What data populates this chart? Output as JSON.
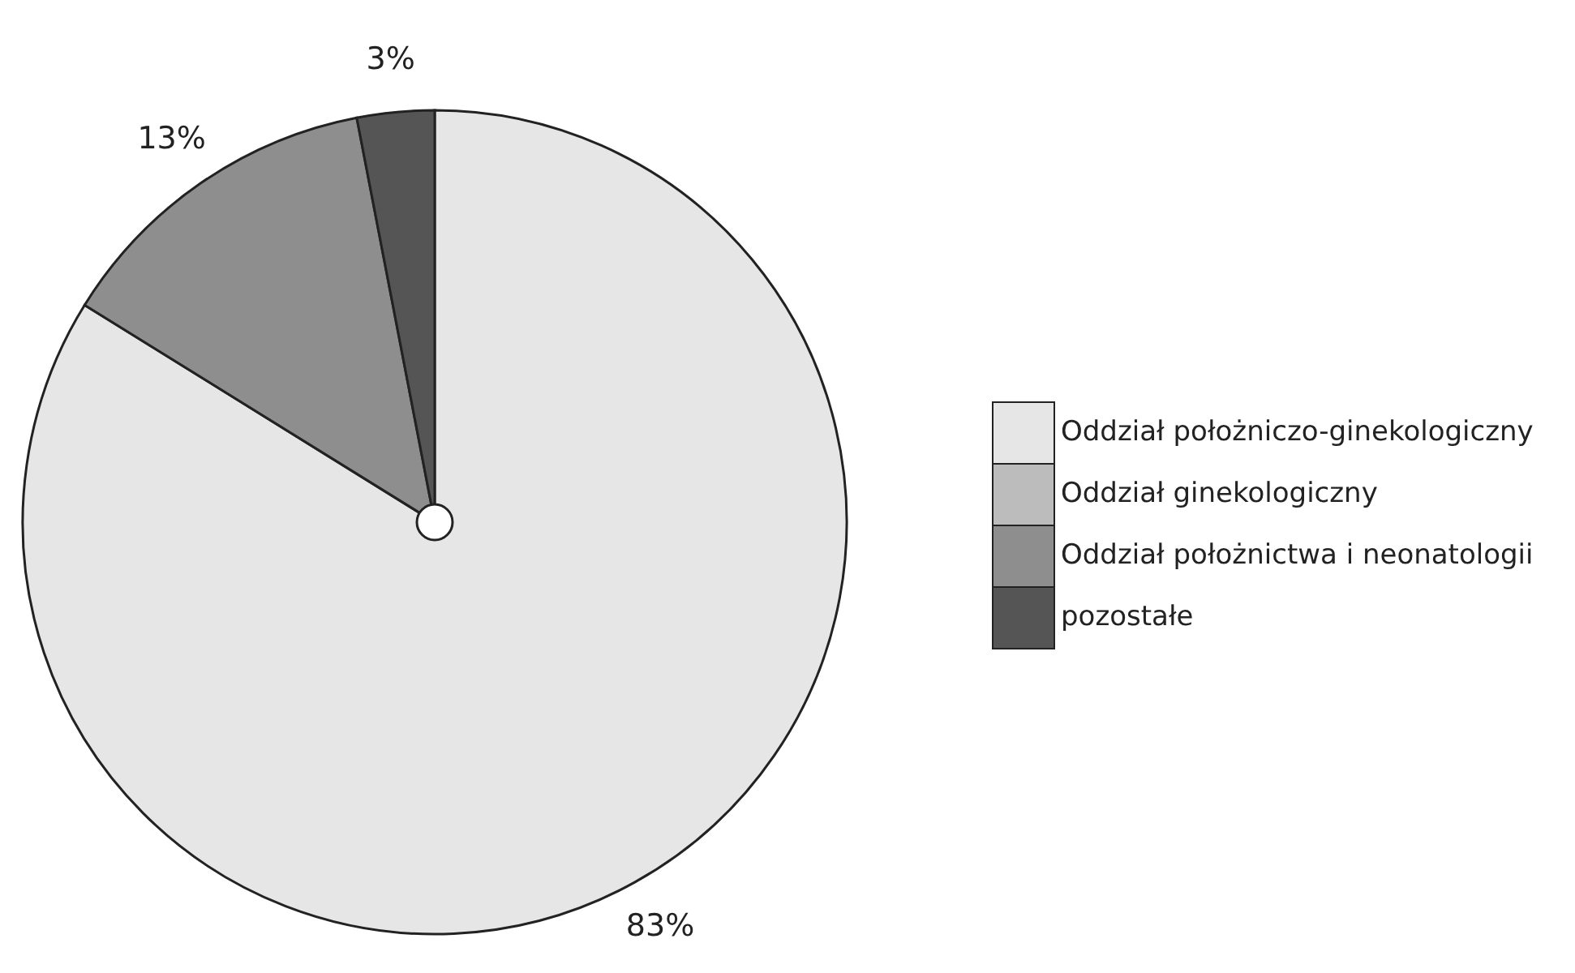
{
  "chart_data": {
    "type": "pie",
    "categories": [
      "Oddział położniczo-ginekologiczny",
      "Oddział ginekologiczny",
      "Oddział położnictwa i neonatologii",
      "pozostałe"
    ],
    "values": [
      83,
      0,
      13,
      3
    ],
    "value_labels": [
      "83%",
      null,
      "13%",
      "3%"
    ],
    "colors": [
      "#e6e6e6",
      "#bcbcbc",
      "#8e8e8e",
      "#555555"
    ],
    "legend": "right"
  }
}
